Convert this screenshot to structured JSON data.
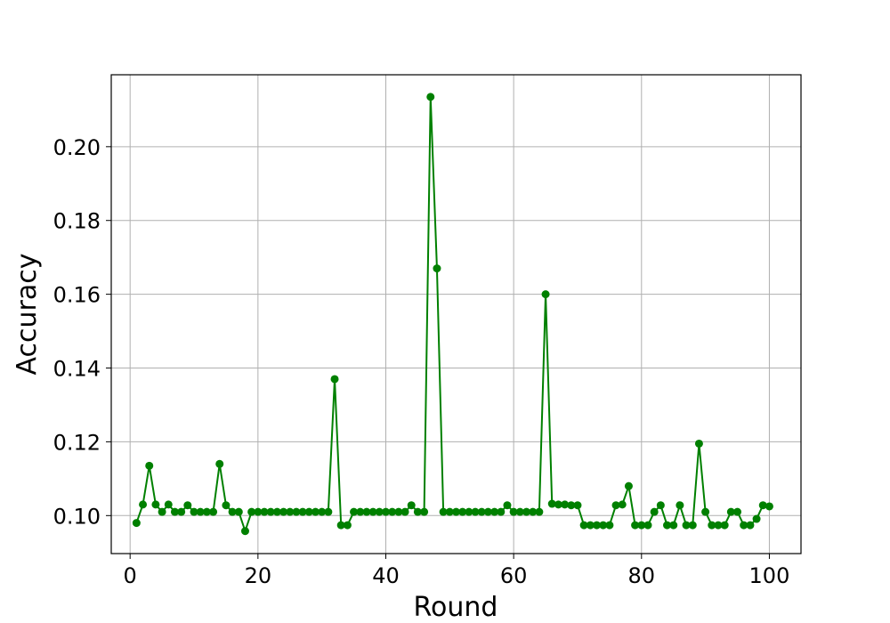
{
  "chart_data": {
    "type": "line",
    "xlabel": "Round",
    "ylabel": "Accuracy",
    "xlim": [
      -2.95,
      104.95
    ],
    "ylim": [
      0.0897,
      0.2195
    ],
    "xticks": [
      0,
      20,
      40,
      60,
      80,
      100
    ],
    "xtick_labels": [
      "0",
      "20",
      "40",
      "60",
      "80",
      "100"
    ],
    "yticks": [
      0.1,
      0.12,
      0.14,
      0.16,
      0.18,
      0.2
    ],
    "ytick_labels": [
      "0.10",
      "0.12",
      "0.14",
      "0.16",
      "0.18",
      "0.20"
    ],
    "grid": true,
    "marker": "circle",
    "series": [
      {
        "color": "#008000",
        "x": [
          1,
          2,
          3,
          4,
          5,
          6,
          7,
          8,
          9,
          10,
          11,
          12,
          13,
          14,
          15,
          16,
          17,
          18,
          19,
          20,
          21,
          22,
          23,
          24,
          25,
          26,
          27,
          28,
          29,
          30,
          31,
          32,
          33,
          34,
          35,
          36,
          37,
          38,
          39,
          40,
          41,
          42,
          43,
          44,
          45,
          46,
          47,
          48,
          49,
          50,
          51,
          52,
          53,
          54,
          55,
          56,
          57,
          58,
          59,
          60,
          61,
          62,
          63,
          64,
          65,
          66,
          67,
          68,
          69,
          70,
          71,
          72,
          73,
          74,
          75,
          76,
          77,
          78,
          79,
          80,
          81,
          82,
          83,
          84,
          85,
          86,
          87,
          88,
          89,
          90,
          91,
          92,
          93,
          94,
          95,
          96,
          97,
          98,
          99,
          100
        ],
        "y": [
          0.098,
          0.103,
          0.1135,
          0.103,
          0.101,
          0.103,
          0.101,
          0.101,
          0.1028,
          0.101,
          0.101,
          0.101,
          0.101,
          0.114,
          0.1028,
          0.101,
          0.101,
          0.0958,
          0.101,
          0.101,
          0.101,
          0.101,
          0.101,
          0.101,
          0.101,
          0.101,
          0.101,
          0.101,
          0.101,
          0.101,
          0.101,
          0.137,
          0.0974,
          0.0974,
          0.101,
          0.101,
          0.101,
          0.101,
          0.101,
          0.101,
          0.101,
          0.101,
          0.101,
          0.1028,
          0.101,
          0.101,
          0.2135,
          0.167,
          0.101,
          0.101,
          0.101,
          0.101,
          0.101,
          0.101,
          0.101,
          0.101,
          0.101,
          0.101,
          0.1028,
          0.101,
          0.101,
          0.101,
          0.101,
          0.101,
          0.16,
          0.1032,
          0.103,
          0.103,
          0.1028,
          0.1028,
          0.0974,
          0.0974,
          0.0974,
          0.0974,
          0.0974,
          0.1028,
          0.103,
          0.108,
          0.0974,
          0.0974,
          0.0974,
          0.101,
          0.1028,
          0.0974,
          0.0974,
          0.1028,
          0.0974,
          0.0974,
          0.1195,
          0.101,
          0.0974,
          0.0974,
          0.0974,
          0.101,
          0.101,
          0.0974,
          0.0974,
          0.0991,
          0.1028,
          0.1025
        ]
      }
    ]
  }
}
